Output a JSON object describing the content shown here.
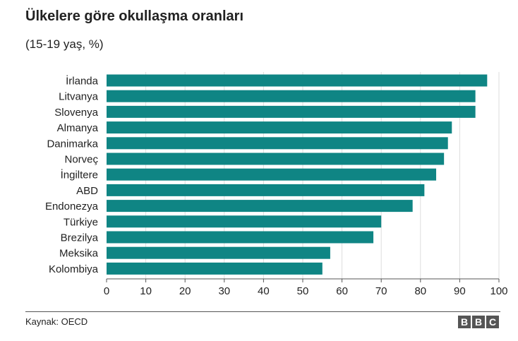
{
  "title": "Ülkelere göre okullaşma oranları",
  "subtitle": "(15-19 yaş, %)",
  "source": "Kaynak: OECD",
  "logo": [
    "B",
    "B",
    "C"
  ],
  "colors": {
    "bar": "#0f8584",
    "grid": "#dddddd",
    "axis": "#555555",
    "text": "#222222"
  },
  "chart_data": {
    "type": "bar",
    "orientation": "horizontal",
    "title": "Ülkelere göre okullaşma oranları",
    "subtitle": "(15-19 yaş, %)",
    "xlabel": "",
    "ylabel": "",
    "xlim": [
      0,
      100
    ],
    "ticks": [
      0,
      10,
      20,
      30,
      40,
      50,
      60,
      70,
      80,
      90,
      100
    ],
    "grid": true,
    "legend": "none",
    "categories": [
      "İrlanda",
      "Litvanya",
      "Slovenya",
      "Almanya",
      "Danimarka",
      "Norveç",
      "İngiltere",
      "ABD",
      "Endonezya",
      "Türkiye",
      "Brezilya",
      "Meksika",
      "Kolombiya"
    ],
    "values": [
      97,
      94,
      94,
      88,
      87,
      86,
      84,
      81,
      78,
      70,
      68,
      57,
      55
    ]
  }
}
